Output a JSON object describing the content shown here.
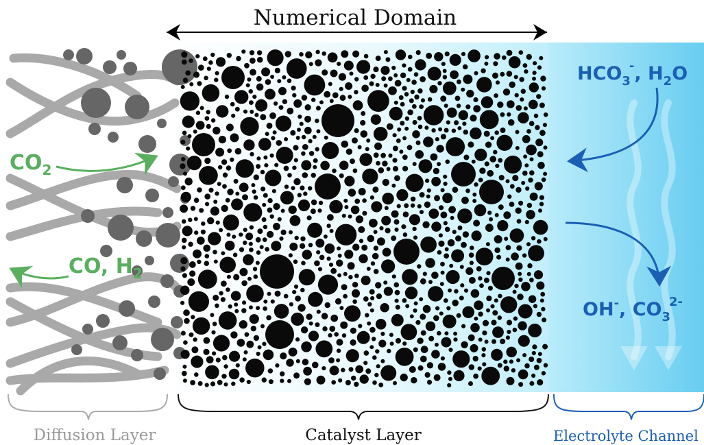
{
  "title": "Numerical Domain",
  "regions": {
    "diffusion": "Diffusion Layer",
    "catalyst": "Catalyst Layer",
    "electrolyte": "Electrolyte Channel"
  },
  "species": {
    "co2": {
      "base": "CO",
      "sub": "2"
    },
    "co_h2": {
      "base": "CO, H",
      "sub": "2"
    },
    "hco3": {
      "base": "HCO",
      "sub": "3",
      "sup": "-"
    },
    "h2o": {
      "base": ", H",
      "sub": "2",
      "tail": "O"
    },
    "oh": {
      "base": "OH",
      "sup": "-"
    },
    "co3": {
      "base": ", CO",
      "sub": "3",
      "sup": "2-"
    }
  },
  "colors": {
    "green": "#5aaf5f",
    "blue": "#1a5fb4",
    "gray_fiber": "#a9a9a9",
    "gray_particle": "#666666",
    "black": "#0a0a0a",
    "electrolyte": "#7fd7f4"
  }
}
